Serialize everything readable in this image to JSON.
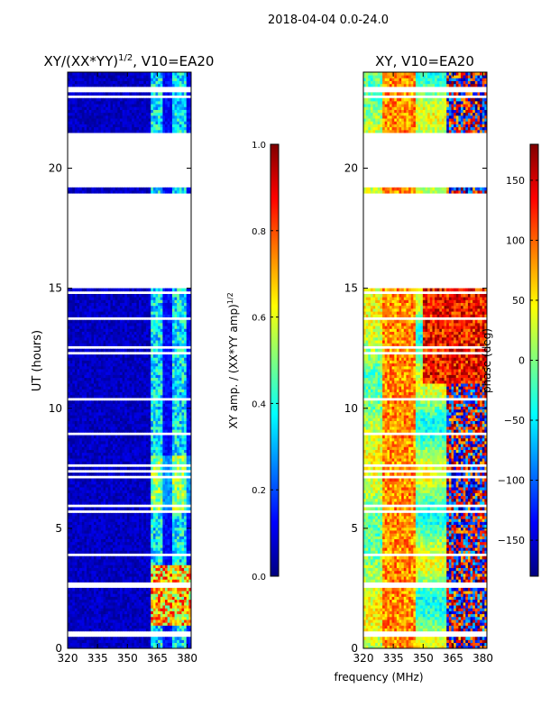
{
  "figure": {
    "suptitle": "2018-04-04 0.0-24.0"
  },
  "colors": {
    "panel_background": "#ffffff",
    "axis": "#000000",
    "jet": [
      "#00007f",
      "#0000ff",
      "#007fff",
      "#00ffff",
      "#7fff7f",
      "#ffff00",
      "#ff7f00",
      "#ff0000",
      "#7f0000"
    ]
  },
  "chart_data": [
    {
      "id": "amplitude",
      "type": "heatmap",
      "title_main": "XY/(XX*YY)",
      "title_sup": "1/2",
      "title_tail": ", V10=EA20",
      "xlabel": "",
      "ylabel": "UT (hours)",
      "xlim": [
        320,
        382
      ],
      "ylim": [
        0,
        24
      ],
      "xticks": [
        320,
        335,
        350,
        365,
        380
      ],
      "xtick_labels": [
        "320",
        "335",
        "350",
        "365",
        "380"
      ],
      "yticks": [
        0,
        5,
        10,
        15,
        20
      ],
      "ytick_labels": [
        "0",
        "5",
        "10",
        "15",
        "20"
      ],
      "colorbar": {
        "label_main": "XY amp. / (XX*YY amp)",
        "label_sup": "1/2",
        "range": [
          0.0,
          1.0
        ],
        "ticks": [
          0.0,
          0.2,
          0.4,
          0.6,
          0.8,
          1.0
        ],
        "tick_labels": [
          "0.0",
          "0.2",
          "0.4",
          "0.6",
          "0.8",
          "1.0"
        ]
      },
      "data_gaps_hours": [
        [
          15.0,
          18.9
        ],
        [
          19.5,
          21.5
        ]
      ],
      "features": [
        "background near 0.0-0.1 (dark blue) between 320 and 362 MHz",
        "bright vertical bands (0.3-0.6) at about 363-382 MHz",
        "strongest values (0.7-0.9) at 363-382 MHz between 1 and 3.5 UT hours"
      ]
    },
    {
      "id": "phase",
      "type": "heatmap",
      "title_main": "XY, V10=EA20",
      "xlabel": "frequency (MHz)",
      "ylabel": "",
      "xlim": [
        320,
        382
      ],
      "ylim": [
        0,
        24
      ],
      "xticks": [
        320,
        335,
        350,
        365,
        380
      ],
      "xtick_labels": [
        "320",
        "335",
        "350",
        "365",
        "380"
      ],
      "yticks": [
        0,
        5,
        10,
        15,
        20
      ],
      "ytick_labels": [
        "0",
        "5",
        "10",
        "15",
        "20"
      ],
      "colorbar": {
        "label_main": "phase (deg)",
        "range": [
          -180,
          180
        ],
        "ticks": [
          -150,
          -100,
          -50,
          0,
          50,
          100,
          150
        ],
        "tick_labels": [
          "−150",
          "−100",
          "−50",
          "0",
          "50",
          "100",
          "150"
        ]
      },
      "data_gaps_hours": [
        [
          15.0,
          18.9
        ],
        [
          19.5,
          21.5
        ]
      ],
      "features": [
        "phase about 30 to 120 deg (yellow/orange) near 330-345 MHz",
        "phase about -60 to 60 deg (cyan/green) across 320-330 MHz and 350-362 MHz",
        "alternating phase from -180 to 180 deg above 362 MHz"
      ]
    }
  ]
}
